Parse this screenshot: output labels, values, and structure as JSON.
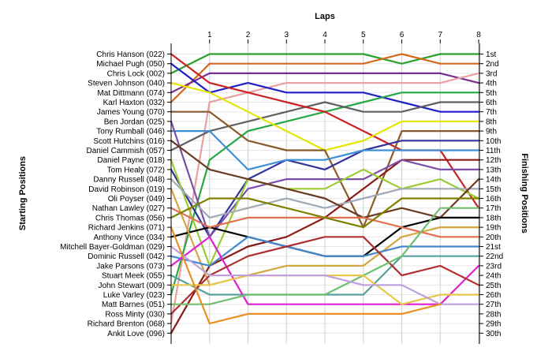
{
  "chart_data": {
    "type": "line",
    "title": "",
    "xlabel": "Laps",
    "ylabel_left": "Starting Positions",
    "ylabel_right": "Finishing Positions",
    "x": [
      0,
      1,
      2,
      3,
      4,
      5,
      6,
      7,
      8
    ],
    "x_tick_labels": [
      "1",
      "2",
      "3",
      "4",
      "5",
      "6",
      "7",
      "8"
    ],
    "ylim": [
      1,
      30
    ],
    "y_inverted": true,
    "grid": true,
    "legend": "none",
    "starting_labels": [
      "Chris Hanson (022)",
      "Michael Pugh (050)",
      "Chris Lock (002)",
      "Steven Johnson (040)",
      "Mat Dittmann (074)",
      "Karl Haxton (032)",
      "James Young (070)",
      "Ben Jordan (025)",
      "Tony Rumball (046)",
      "Scott Hutchins (016)",
      "Daniel Cammish (057)",
      "Daniel Payne (018)",
      "Tom Healy (072)",
      "Danny Russell (048)",
      "David Robinson (019)",
      "Oli Poyser (049)",
      "Nathan Lawley (027)",
      "Chris Thomas (056)",
      "Richard Jenkins (071)",
      "Anthony Vince (034)",
      "Mitchell Bayer-Goldman (029)",
      "Dominic Russell (042)",
      "Jake Parsons (073)",
      "Stuart Meek (055)",
      "John Stewart (009)",
      "Luke Varley (023)",
      "Matt Barnes (051)",
      "Ross Minty (030)",
      "Richard Brenton (068)",
      "Ankit Love (096)"
    ],
    "finishing_labels": [
      "1st",
      "2nd",
      "3rd",
      "4th",
      "5th",
      "6th",
      "7th",
      "8th",
      "9th",
      "10th",
      "11th",
      "12th",
      "13th",
      "14th",
      "15th",
      "16th",
      "17th",
      "18th",
      "19th",
      "20th",
      "21st",
      "22nd",
      "23rd",
      "24th",
      "25th",
      "26th",
      "27th",
      "28th",
      "29th",
      "30th"
    ],
    "series": [
      {
        "color": "#2ca02c",
        "values": [
          3,
          1,
          1,
          1,
          1,
          1,
          2,
          1,
          1
        ]
      },
      {
        "color": "#d2691e",
        "values": [
          6,
          2,
          2,
          2,
          2,
          2,
          1,
          2,
          2
        ]
      },
      {
        "color": "#7b2c8f",
        "values": [
          5,
          3,
          3,
          3,
          3,
          3,
          3,
          3,
          4
        ]
      },
      {
        "color": "#e8a0a0",
        "values": [
          29,
          6,
          5,
          4,
          4,
          4,
          4,
          4,
          3
        ]
      },
      {
        "color": "#1f1fc8",
        "values": [
          2,
          5,
          4,
          5,
          5,
          5,
          6,
          7,
          7
        ]
      },
      {
        "color": "#27a844",
        "values": [
          26,
          12,
          9,
          8,
          7,
          6,
          5,
          5,
          5
        ]
      },
      {
        "color": "#606060",
        "values": [
          11,
          9,
          8,
          7,
          6,
          7,
          7,
          6,
          6
        ]
      },
      {
        "color": "#cc2222",
        "values": [
          1,
          4,
          5,
          6,
          7,
          9,
          11,
          11,
          17
        ]
      },
      {
        "color": "#e6e600",
        "values": [
          4,
          5,
          7,
          9,
          11,
          10,
          8,
          8,
          8
        ]
      },
      {
        "color": "#8b5a2b",
        "values": [
          7,
          7,
          10,
          11,
          11,
          19,
          9,
          9,
          9
        ]
      },
      {
        "color": "#333399",
        "values": [
          13,
          20,
          14,
          12,
          13,
          11,
          10,
          10,
          10
        ]
      },
      {
        "color": "#3c8fd8",
        "values": [
          9,
          9,
          13,
          12,
          12,
          11,
          11,
          11,
          11
        ]
      },
      {
        "color": "#8b1a1a",
        "values": [
          30,
          23,
          21,
          20,
          18,
          15,
          12,
          12,
          12
        ]
      },
      {
        "color": "#7b4fa8",
        "values": [
          8,
          20,
          15,
          14,
          14,
          14,
          12,
          13,
          13
        ]
      },
      {
        "color": "#9acd32",
        "values": [
          12,
          23,
          14,
          15,
          15,
          13,
          15,
          14,
          16
        ]
      },
      {
        "color": "#a0aab4",
        "values": [
          14,
          18,
          17,
          16,
          17,
          16,
          15,
          15,
          15
        ]
      },
      {
        "color": "#6b3a1f",
        "values": [
          10,
          13,
          14,
          15,
          16,
          18,
          17,
          18,
          14
        ]
      },
      {
        "color": "#000000",
        "values": [
          20,
          19,
          20,
          21,
          22,
          22,
          19,
          18,
          18
        ]
      },
      {
        "color": "#d4a640",
        "values": [
          15,
          25,
          24,
          23,
          23,
          23,
          20,
          19,
          19
        ]
      },
      {
        "color": "#e07050",
        "values": [
          17,
          19,
          18,
          18,
          18,
          18,
          19,
          20,
          20
        ]
      },
      {
        "color": "#4488cc",
        "values": [
          22,
          23,
          20,
          21,
          22,
          22,
          21,
          21,
          21
        ]
      },
      {
        "color": "#5aa0a0",
        "values": [
          24,
          26,
          26,
          26,
          26,
          26,
          22,
          22,
          22
        ]
      },
      {
        "color": "#e020d0",
        "values": [
          23,
          20,
          27,
          27,
          27,
          27,
          27,
          27,
          23
        ]
      },
      {
        "color": "#b03030",
        "values": [
          28,
          24,
          22,
          21,
          20,
          20,
          24,
          23,
          25
        ]
      },
      {
        "color": "#70c070",
        "values": [
          27,
          27,
          26,
          26,
          26,
          24,
          22,
          17,
          17
        ]
      },
      {
        "color": "#e8c84a",
        "values": [
          25,
          25,
          24,
          24,
          24,
          24,
          27,
          26,
          26
        ]
      },
      {
        "color": "#bfa0dd",
        "values": [
          21,
          24,
          24,
          24,
          24,
          25,
          25,
          27,
          27
        ]
      },
      {
        "color": "#808000",
        "values": [
          18,
          16,
          16,
          17,
          18,
          19,
          16,
          16,
          16
        ]
      },
      {
        "color": "#e89020",
        "values": [
          19,
          29,
          28,
          28,
          28,
          28,
          28,
          27,
          null
        ]
      }
    ]
  }
}
